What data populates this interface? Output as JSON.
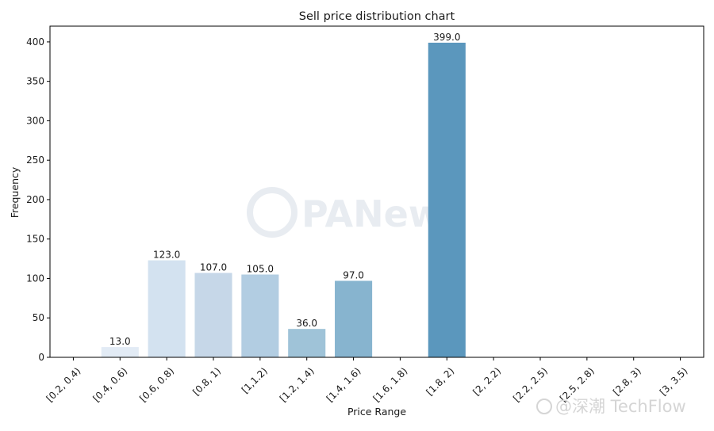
{
  "chart_data": {
    "type": "bar",
    "title": "Sell price distribution chart",
    "xlabel": "Price Range",
    "ylabel": "Frequency",
    "categories": [
      "[0.2, 0.4)",
      "[0.4, 0.6)",
      "[0.6, 0.8)",
      "[0.8, 1)",
      "[1,1.2)",
      "[1.2, 1.4)",
      "[1.4, 1.6)",
      "[1.6, 1.8)",
      "[1.8, 2)",
      "[2, 2.2)",
      "[2.2, 2.5)",
      "[2.5, 2.8)",
      "[2.8, 3)",
      "[3, 3.5)"
    ],
    "values": [
      0,
      13,
      123,
      107,
      105,
      36,
      97,
      0,
      399,
      0,
      0,
      0,
      0,
      0
    ],
    "data_labels": [
      "",
      "13.0",
      "123.0",
      "107.0",
      "105.0",
      "36.0",
      "97.0",
      "",
      "399.0",
      "",
      "",
      "",
      "",
      ""
    ],
    "colors": [
      "#f3f7fb",
      "#e2ebf5",
      "#d3e2f0",
      "#c6d7e8",
      "#b2cde2",
      "#9fc3d8",
      "#87b4cf",
      "#73a9c9",
      "#5b97bd",
      "#4c8ab5",
      "#3f7fae",
      "#3576a8",
      "#2d6ea2",
      "#27669c"
    ],
    "yticks": [
      0,
      50,
      100,
      150,
      200,
      250,
      300,
      350,
      400
    ],
    "ylim": [
      0,
      420
    ],
    "grid": false,
    "legend": "none"
  },
  "watermarks": {
    "center": "PANews",
    "bottom_right": "@深潮 TechFlow"
  }
}
